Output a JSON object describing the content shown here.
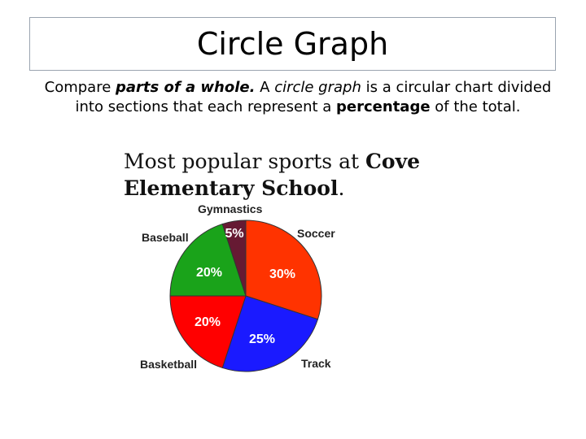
{
  "slide": {
    "title": "Circle Graph",
    "desc_1": "Compare ",
    "desc_2": "parts of a whole.",
    "desc_3": " A ",
    "desc_4": "circle graph",
    "desc_5": " is a circular chart divided into sections that each represent a ",
    "desc_6": "percentage",
    "desc_7": " of the total."
  },
  "chart_data": {
    "type": "pie",
    "title_part1": "Most popular sports at ",
    "title_part2": "Cove Elementary School",
    "title_part3": ".",
    "slices": [
      {
        "name": "Soccer",
        "value": 30,
        "label": "30%",
        "color": "#ff3300"
      },
      {
        "name": "Track",
        "value": 25,
        "label": "25%",
        "color": "#1a1aff"
      },
      {
        "name": "Basketball",
        "value": 20,
        "label": "20%",
        "color": "#ff0000"
      },
      {
        "name": "Baseball",
        "value": 20,
        "label": "20%",
        "color": "#1aa31a"
      },
      {
        "name": "Gymnastics",
        "value": 5,
        "label": "5%",
        "color": "#661a33"
      }
    ]
  }
}
